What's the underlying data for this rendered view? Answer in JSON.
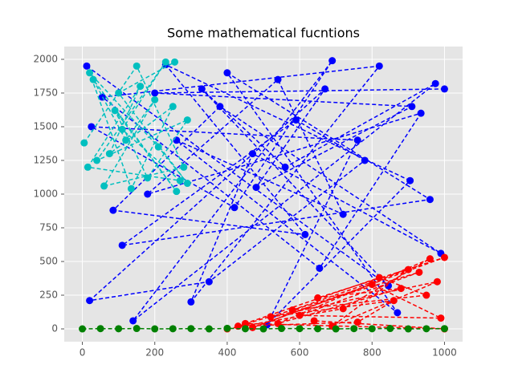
{
  "chart_data": {
    "type": "line",
    "title": "Some mathematical fucntions",
    "xlim": [
      -50,
      1050
    ],
    "ylim": [
      -95,
      2095
    ],
    "xticks": [
      0,
      200,
      400,
      600,
      800,
      1000
    ],
    "yticks": [
      0,
      250,
      500,
      750,
      1000,
      1250,
      1500,
      1750,
      2000
    ],
    "grid": true,
    "background": "#e5e5e5",
    "linestyle": "dashed",
    "marker": "circle",
    "series": [
      {
        "color": "#0000ff",
        "x": [
          12,
          845,
          330,
          560,
          975,
          140,
          690,
          420,
          25,
          760,
          510,
          905,
          230,
          615,
          85,
          380,
          990,
          470,
          300,
          820,
          55,
          655,
          935,
          180,
          540,
          720,
          260,
          870,
          400,
          960,
          110,
          590,
          780,
          350,
          20,
          670,
          480,
          910,
          200,
          1000
        ],
        "values": [
          1950,
          320,
          1780,
          1200,
          1820,
          60,
          1990,
          900,
          1500,
          1400,
          30,
          1100,
          1960,
          700,
          880,
          1650,
          560,
          1300,
          200,
          1950,
          1720,
          450,
          1600,
          1000,
          1850,
          850,
          1400,
          120,
          1900,
          960,
          620,
          1550,
          1250,
          350,
          210,
          1780,
          1050,
          1650,
          1750,
          1780
        ]
      },
      {
        "color": "#00bfbf",
        "x": [
          5,
          150,
          280,
          60,
          200,
          120,
          30,
          260,
          90,
          180,
          290,
          40,
          230,
          110,
          270,
          15,
          160,
          75,
          250,
          135,
          20,
          210,
          290,
          100,
          255
        ],
        "values": [
          1380,
          1950,
          1200,
          1060,
          1700,
          1400,
          1850,
          1020,
          1620,
          1120,
          1550,
          1250,
          1980,
          1480,
          1100,
          1200,
          1800,
          1300,
          1650,
          1040,
          1900,
          1350,
          1080,
          1750,
          1980
        ]
      },
      {
        "color": "#ff0000",
        "x": [
          400,
          720,
          960,
          540,
          880,
          650,
          1000,
          470,
          800,
          990,
          600,
          930,
          430,
          760,
          860,
          520,
          980,
          690,
          900,
          580,
          950,
          820,
          450,
          1000,
          640
        ],
        "values": [
          0,
          150,
          520,
          40,
          300,
          230,
          530,
          10,
          330,
          80,
          100,
          420,
          20,
          50,
          210,
          90,
          350,
          20,
          440,
          140,
          250,
          380,
          40,
          0,
          60
        ]
      },
      {
        "color": "#008000",
        "x": [
          0,
          50,
          100,
          150,
          200,
          250,
          300,
          350,
          400,
          450,
          500,
          550,
          600,
          650,
          700,
          750,
          800,
          850,
          900,
          950,
          1000
        ],
        "values": [
          0,
          2,
          1,
          3,
          0,
          1,
          2,
          0,
          4,
          1,
          0,
          3,
          2,
          1,
          0,
          2,
          1,
          3,
          0,
          1,
          2
        ]
      }
    ]
  }
}
